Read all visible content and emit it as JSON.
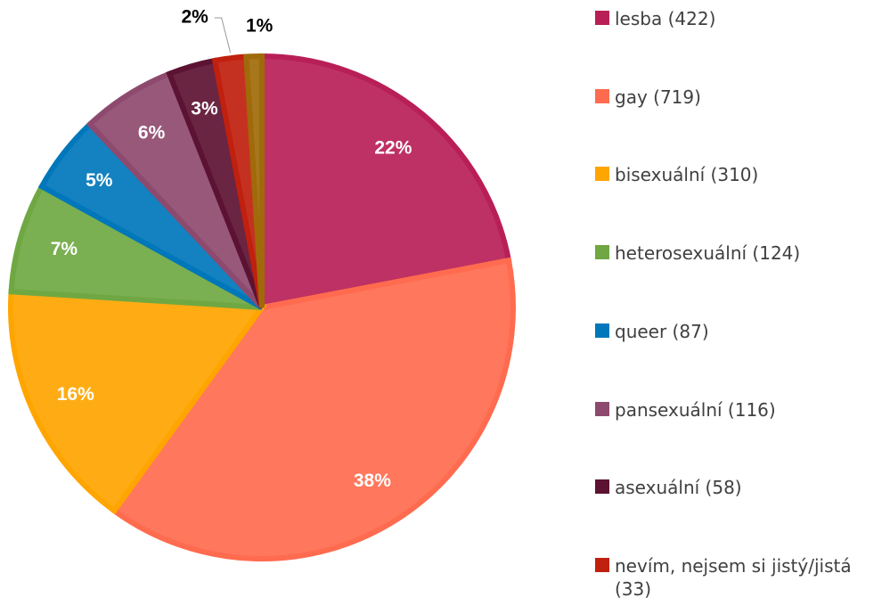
{
  "chart_data": {
    "type": "pie",
    "categories": [
      "lesba (422)",
      "gay (719)",
      "bisexuální (310)",
      "heterosexuální (124)",
      "queer (87)",
      "pansexuální (116)",
      "asexuální (58)",
      "nevím, nejsem si jistý/jistá (33)",
      null
    ],
    "values": [
      22,
      38,
      16,
      7,
      5,
      6,
      3,
      2,
      1
    ],
    "value_labels": [
      "22%",
      "38%",
      "16%",
      "7%",
      "5%",
      "6%",
      "3%",
      "2%",
      "1%"
    ],
    "colors": [
      "#b81f57",
      "#ff6b4f",
      "#ffa500",
      "#6fa843",
      "#0077bb",
      "#8e4a6e",
      "#5c1232",
      "#c0200e",
      "#a06a0a"
    ]
  }
}
